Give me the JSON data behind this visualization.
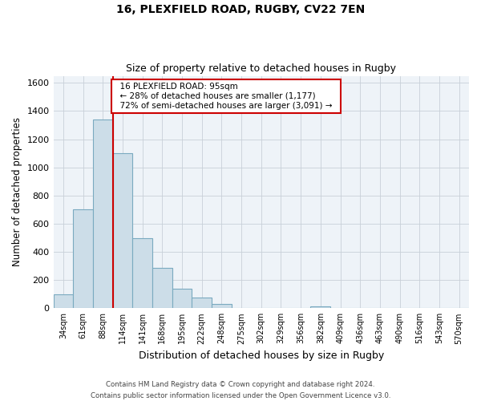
{
  "title1": "16, PLEXFIELD ROAD, RUGBY, CV22 7EN",
  "title2": "Size of property relative to detached houses in Rugby",
  "xlabel": "Distribution of detached houses by size in Rugby",
  "ylabel": "Number of detached properties",
  "bar_labels": [
    "34sqm",
    "61sqm",
    "88sqm",
    "114sqm",
    "141sqm",
    "168sqm",
    "195sqm",
    "222sqm",
    "248sqm",
    "275sqm",
    "302sqm",
    "329sqm",
    "356sqm",
    "382sqm",
    "409sqm",
    "436sqm",
    "463sqm",
    "490sqm",
    "516sqm",
    "543sqm",
    "570sqm"
  ],
  "bar_values": [
    100,
    700,
    1340,
    1100,
    500,
    285,
    140,
    75,
    30,
    0,
    0,
    0,
    0,
    15,
    0,
    0,
    0,
    0,
    0,
    0,
    0
  ],
  "bar_color": "#ccdde8",
  "bar_edge_color": "#7aaac0",
  "ylim": [
    0,
    1650
  ],
  "yticks": [
    0,
    200,
    400,
    600,
    800,
    1000,
    1200,
    1400,
    1600
  ],
  "property_line_x": 2.5,
  "property_line_color": "#cc0000",
  "annotation_title": "16 PLEXFIELD ROAD: 95sqm",
  "annotation_line1": "← 28% of detached houses are smaller (1,177)",
  "annotation_line2": "72% of semi-detached houses are larger (3,091) →",
  "annotation_box_color": "#ffffff",
  "annotation_box_edge": "#cc0000",
  "footer1": "Contains HM Land Registry data © Crown copyright and database right 2024.",
  "footer2": "Contains public sector information licensed under the Open Government Licence v3.0."
}
